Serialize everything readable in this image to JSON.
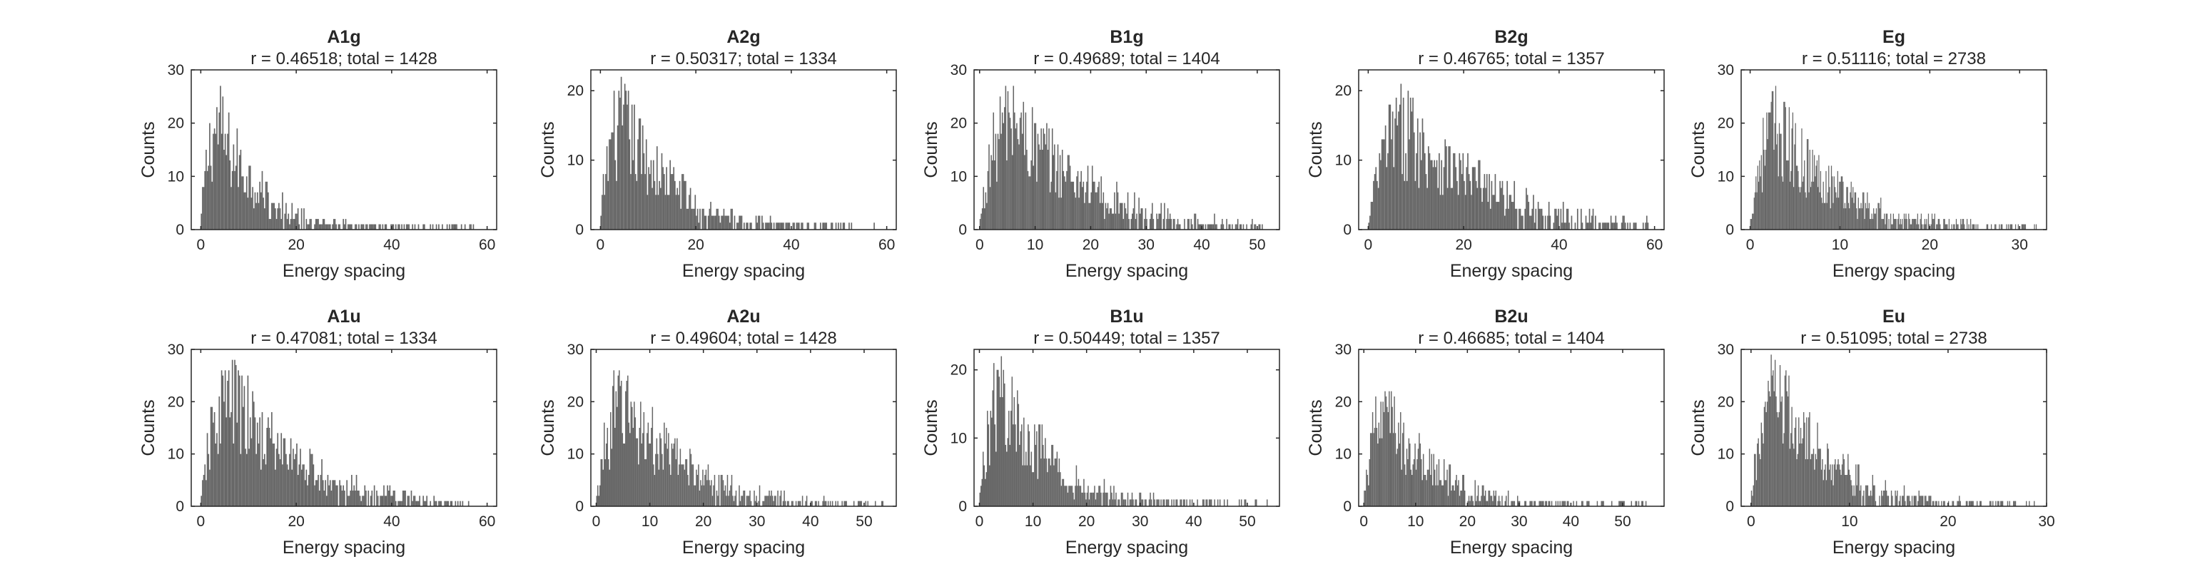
{
  "figure": {
    "bar_color": "#666666",
    "axis_color": "#262626",
    "background": "#ffffff"
  },
  "chart_data": [
    {
      "type": "bar",
      "title": "A1g",
      "subtitle": "r = 0.46518; total = 1428",
      "xlabel": "Energy spacing",
      "ylabel": "Counts",
      "xlim": [
        -2,
        62
      ],
      "ylim": [
        0,
        30
      ],
      "xticks": [
        0,
        20,
        40,
        60
      ],
      "yticks": [
        0,
        10,
        20,
        30
      ],
      "grid": false,
      "bin_width": 0.25,
      "peak": 4.5,
      "max_count": 27,
      "tail_end": 59
    },
    {
      "type": "bar",
      "title": "A2g",
      "subtitle": "r = 0.50317; total = 1334",
      "xlabel": "Energy spacing",
      "ylabel": "Counts",
      "xlim": [
        -2,
        62
      ],
      "ylim": [
        0,
        23
      ],
      "xticks": [
        0,
        20,
        40,
        60
      ],
      "yticks": [
        0,
        10,
        20
      ],
      "grid": false,
      "bin_width": 0.25,
      "peak": 5.5,
      "max_count": 22,
      "tail_end": 58
    },
    {
      "type": "bar",
      "title": "B1g",
      "subtitle": "r = 0.49689; total = 1404",
      "xlabel": "Energy spacing",
      "ylabel": "Counts",
      "xlim": [
        -1,
        54
      ],
      "ylim": [
        0,
        30
      ],
      "xticks": [
        0,
        10,
        20,
        30,
        40,
        50
      ],
      "yticks": [
        0,
        10,
        20,
        30
      ],
      "grid": false,
      "bin_width": 0.2,
      "peak": 7,
      "max_count": 29,
      "tail_end": 52
    },
    {
      "type": "bar",
      "title": "B2g",
      "subtitle": "r = 0.46765; total = 1357",
      "xlabel": "Energy spacing",
      "ylabel": "Counts",
      "xlim": [
        -2,
        62
      ],
      "ylim": [
        0,
        23
      ],
      "xticks": [
        0,
        20,
        40,
        60
      ],
      "yticks": [
        0,
        10,
        20
      ],
      "grid": false,
      "bin_width": 0.25,
      "peak": 9,
      "max_count": 21,
      "tail_end": 59
    },
    {
      "type": "bar",
      "title": "Eg",
      "subtitle": "r = 0.51116; total = 2738",
      "xlabel": "Energy spacing",
      "ylabel": "Counts",
      "xlim": [
        -1,
        33
      ],
      "ylim": [
        0,
        30
      ],
      "xticks": [
        0,
        10,
        20,
        30
      ],
      "yticks": [
        0,
        10,
        20,
        30
      ],
      "grid": false,
      "bin_width": 0.1,
      "peak": 3.5,
      "max_count": 27,
      "tail_end": 32
    },
    {
      "type": "bar",
      "title": "A1u",
      "subtitle": "r = 0.47081; total = 1334",
      "xlabel": "Energy spacing",
      "ylabel": "Counts",
      "xlim": [
        -2,
        62
      ],
      "ylim": [
        0,
        30
      ],
      "xticks": [
        0,
        20,
        40,
        60
      ],
      "yticks": [
        0,
        10,
        20,
        30
      ],
      "grid": false,
      "bin_width": 0.25,
      "peak": 7.5,
      "max_count": 29,
      "tail_end": 59
    },
    {
      "type": "bar",
      "title": "A2u",
      "subtitle": "r = 0.49604; total = 1428",
      "xlabel": "Energy spacing",
      "ylabel": "Counts",
      "xlim": [
        -1,
        56
      ],
      "ylim": [
        0,
        30
      ],
      "xticks": [
        0,
        10,
        20,
        30,
        40,
        50
      ],
      "yticks": [
        0,
        10,
        20,
        30
      ],
      "grid": false,
      "bin_width": 0.2,
      "peak": 6,
      "max_count": 27,
      "tail_end": 54
    },
    {
      "type": "bar",
      "title": "B1u",
      "subtitle": "r = 0.50449; total = 1357",
      "xlabel": "Energy spacing",
      "ylabel": "Counts",
      "xlim": [
        -1,
        56
      ],
      "ylim": [
        0,
        23
      ],
      "xticks": [
        0,
        10,
        20,
        30,
        40,
        50
      ],
      "yticks": [
        0,
        10,
        20
      ],
      "grid": false,
      "bin_width": 0.2,
      "peak": 5,
      "max_count": 22,
      "tail_end": 54
    },
    {
      "type": "bar",
      "title": "B2u",
      "subtitle": "r = 0.46685; total = 1404",
      "xlabel": "Energy spacing",
      "ylabel": "Counts",
      "xlim": [
        -1,
        58
      ],
      "ylim": [
        0,
        30
      ],
      "xticks": [
        0,
        10,
        20,
        30,
        40,
        50
      ],
      "yticks": [
        0,
        10,
        20,
        30
      ],
      "grid": false,
      "bin_width": 0.2,
      "peak": 5,
      "max_count": 24,
      "tail_end": 55
    },
    {
      "type": "bar",
      "title": "Eu",
      "subtitle": "r = 0.51095; total = 2738",
      "xlabel": "Energy spacing",
      "ylabel": "Counts",
      "xlim": [
        -1,
        30
      ],
      "ylim": [
        0,
        30
      ],
      "xticks": [
        0,
        10,
        20,
        30
      ],
      "yticks": [
        0,
        10,
        20,
        30
      ],
      "grid": false,
      "bin_width": 0.1,
      "peak": 3,
      "max_count": 29,
      "tail_end": 29
    }
  ]
}
